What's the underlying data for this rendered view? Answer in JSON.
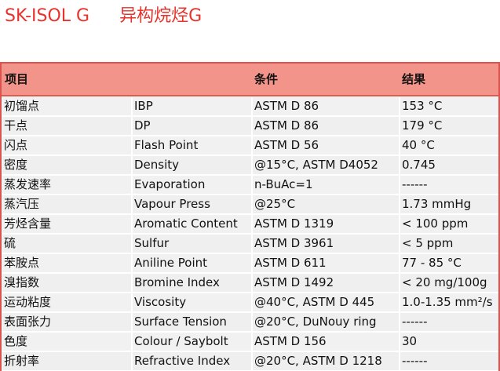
{
  "title": {
    "product": "SK-ISOL G",
    "chinese": "异构烷烃G"
  },
  "table": {
    "headers": {
      "item": "项目",
      "condition": "条件",
      "result": "结果"
    },
    "rows": [
      {
        "cn": "初馏点",
        "en": "IBP",
        "condition": "ASTM D 86",
        "result": "153 °C"
      },
      {
        "cn": "干点",
        "en": "DP",
        "condition": "ASTM D 86",
        "result": "179 °C"
      },
      {
        "cn": "闪点",
        "en": "Flash Point",
        "condition": "ASTM D 56",
        "result": "40 °C"
      },
      {
        "cn": "密度",
        "en": "Density",
        "condition": "@15°C, ASTM D4052",
        "result": "0.745"
      },
      {
        "cn": "蒸发速率",
        "en": "Evaporation",
        "condition": "n-BuAc=1",
        "result": "------"
      },
      {
        "cn": "蒸汽压",
        "en": "Vapour Press",
        "condition": "@25°C",
        "result": "1.73 mmHg"
      },
      {
        "cn": "芳烃含量",
        "en": "Aromatic Content",
        "condition": "ASTM D 1319",
        "result": "< 100 ppm"
      },
      {
        "cn": "硫",
        "en": "Sulfur",
        "condition": "ASTM D 3961",
        "result": "< 5 ppm"
      },
      {
        "cn": "苯胺点",
        "en": "Aniline Point",
        "condition": "ASTM D 611",
        "result": "77 - 85 °C"
      },
      {
        "cn": "溴指数",
        "en": "Bromine Index",
        "condition": "ASTM D 1492",
        "result": "< 20 mg/100g"
      },
      {
        "cn": "运动粘度",
        "en": "Viscosity",
        "condition": "@40°C, ASTM D 445",
        "result": "1.0-1.35 mm²/s"
      },
      {
        "cn": "表面张力",
        "en": "Surface Tension",
        "condition": "@20°C, DuNouy ring",
        "result": "------"
      },
      {
        "cn": "色度",
        "en": "Colour / Saybolt",
        "condition": "ASTM D 156",
        "result": "30"
      },
      {
        "cn": "折射率",
        "en": "Refractive Index",
        "condition": "@20°C, ASTM D 1218",
        "result": "------"
      }
    ]
  }
}
